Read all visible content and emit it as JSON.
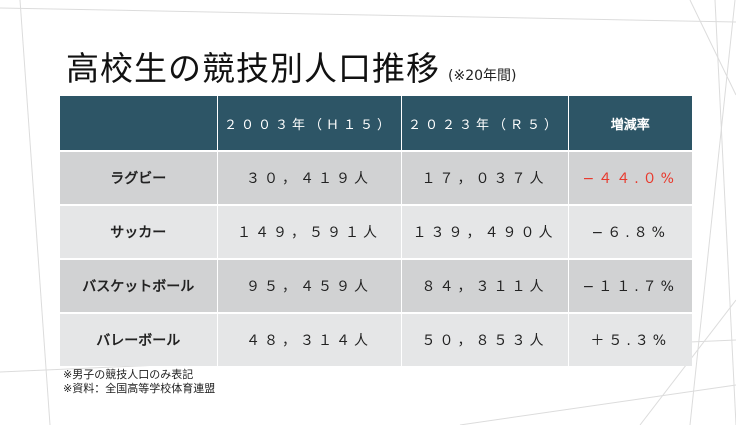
{
  "title": "高校生の競技別人口推移",
  "subtitle": "(※20年間)",
  "table": {
    "headers": [
      "",
      "２００３年（Ｈ１５）",
      "２０２３年（Ｒ５）",
      "増減率"
    ],
    "rows": [
      {
        "sport": "ラグビー",
        "y2003": "３０，４１９人",
        "y2023": "１７，０３７人",
        "change": "−４４.０%"
      },
      {
        "sport": "サッカー",
        "y2003": "１４９，５９１人",
        "y2023": "１３９，４９０人",
        "change": "−６.８%"
      },
      {
        "sport": "バスケットボール",
        "y2003": "９５，４５９人",
        "y2023": "８４，３１１人",
        "change": "−１１.７%"
      },
      {
        "sport": "バレーボール",
        "y2003": "４８，３１４人",
        "y2023": "５０，８５３人",
        "change": "＋５.３%"
      }
    ]
  },
  "notes": [
    "※男子の競技人口のみ表記",
    "※資料：全国高等学校体育連盟"
  ],
  "colors": {
    "header_bg": "#2d5566",
    "row_dark": "#d1d2d3",
    "row_light": "#e5e6e7",
    "highlight": "#e8392c"
  }
}
